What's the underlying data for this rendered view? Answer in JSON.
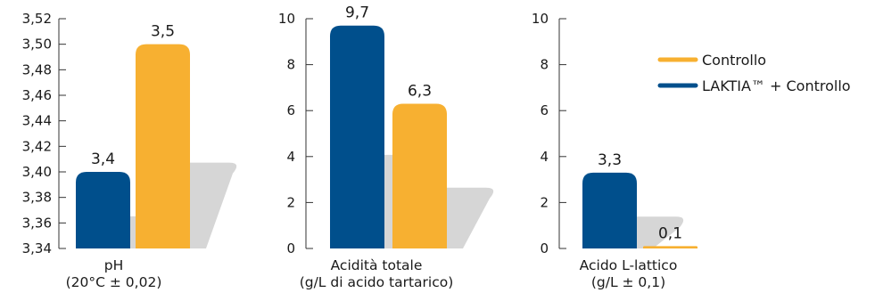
{
  "colors": {
    "laktia": "#004f8c",
    "controllo": "#f7b031",
    "shadow": "#d6d6d6",
    "axis": "#333333"
  },
  "legend": [
    {
      "label": "Controllo",
      "color": "#f7b031"
    },
    {
      "label": "LAKTIA™ + Controllo",
      "color": "#004f8c"
    }
  ],
  "chart_data": [
    {
      "type": "bar",
      "title": "",
      "xlabel": [
        "pH",
        "(20°C ± 0,02)"
      ],
      "ylabel": "",
      "ylim": [
        3.34,
        3.52
      ],
      "yticks": [
        "3,34",
        "3,36",
        "3,38",
        "3,40",
        "3,42",
        "3,44",
        "3,46",
        "3,48",
        "3,50",
        "3,52"
      ],
      "categories": [
        "pH"
      ],
      "series": [
        {
          "name": "LAKTIA™ + Controllo",
          "values": [
            3.4
          ],
          "label": "3,4"
        },
        {
          "name": "Controllo",
          "values": [
            3.5
          ],
          "label": "3,5"
        }
      ]
    },
    {
      "type": "bar",
      "title": "",
      "xlabel": [
        "Acidità totale",
        "(g/L di acido tartarico)"
      ],
      "ylabel": "",
      "ylim": [
        0,
        10
      ],
      "yticks": [
        "0",
        "2",
        "4",
        "6",
        "8",
        "10"
      ],
      "categories": [
        "Acidità totale"
      ],
      "series": [
        {
          "name": "LAKTIA™ + Controllo",
          "values": [
            9.7
          ],
          "label": "9,7"
        },
        {
          "name": "Controllo",
          "values": [
            6.3
          ],
          "label": "6,3"
        }
      ]
    },
    {
      "type": "bar",
      "title": "",
      "xlabel": [
        "Acido L-lattico",
        "(g/L ± 0,1)"
      ],
      "ylabel": "",
      "ylim": [
        0,
        10
      ],
      "yticks": [
        "0",
        "2",
        "4",
        "6",
        "8",
        "10"
      ],
      "categories": [
        "Acido L-lattico"
      ],
      "series": [
        {
          "name": "LAKTIA™ + Controllo",
          "values": [
            3.3
          ],
          "label": "3,3"
        },
        {
          "name": "Controllo",
          "values": [
            0.1
          ],
          "label": "0,1"
        }
      ]
    }
  ]
}
